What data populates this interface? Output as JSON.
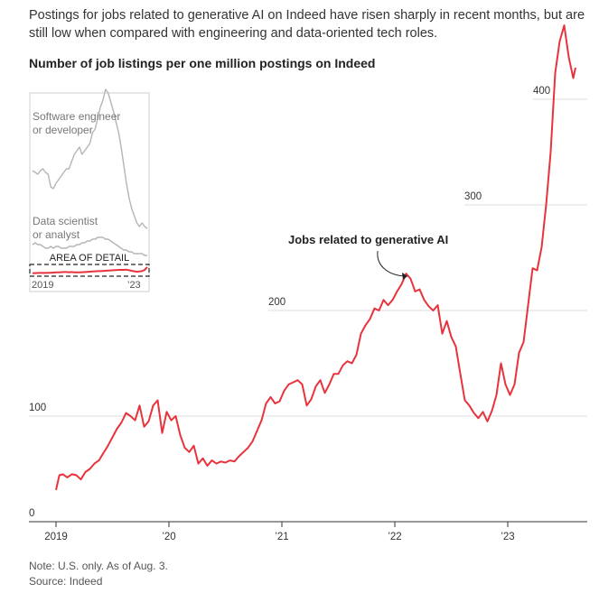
{
  "header": {
    "subtitle": "Postings for jobs related to generative AI on Indeed have risen sharply in recent months, but are still low when compared with engineering and data-oriented tech roles.",
    "title": "Number of job listings per one million postings on Indeed"
  },
  "footer": {
    "note": "Note: U.S. only. As of Aug. 3.",
    "source": "Source: Indeed"
  },
  "colors": {
    "series": "#e8333c",
    "grid": "#dcdcdc",
    "inset_line": "#b5b5b5",
    "text": "#222222"
  },
  "chart_data": [
    {
      "type": "line",
      "title": "Number of job listings per one million postings on Indeed",
      "xlabel": "",
      "ylabel": "",
      "ylim": [
        0,
        440
      ],
      "y_ticks": [
        0,
        100,
        200,
        300,
        400
      ],
      "y_tick_labels": [
        "0",
        "100",
        "200",
        "300",
        "400"
      ],
      "x_ticks": [
        2019.0,
        2020.0,
        2021.0,
        2022.0,
        2023.0
      ],
      "x_tick_labels": [
        "2019",
        "’20",
        "’21",
        "’22",
        "’23"
      ],
      "grid": true,
      "annotation": "Jobs related to generative AI",
      "series": [
        {
          "name": "Jobs related to generative AI",
          "x": [
            2019.0,
            2019.03,
            2019.06,
            2019.1,
            2019.14,
            2019.18,
            2019.22,
            2019.26,
            2019.3,
            2019.34,
            2019.38,
            2019.42,
            2019.46,
            2019.5,
            2019.54,
            2019.58,
            2019.62,
            2019.66,
            2019.7,
            2019.74,
            2019.78,
            2019.82,
            2019.86,
            2019.9,
            2019.94,
            2019.98,
            2020.02,
            2020.06,
            2020.1,
            2020.14,
            2020.18,
            2020.22,
            2020.26,
            2020.3,
            2020.34,
            2020.38,
            2020.42,
            2020.46,
            2020.5,
            2020.54,
            2020.58,
            2020.62,
            2020.66,
            2020.7,
            2020.74,
            2020.78,
            2020.82,
            2020.86,
            2020.9,
            2020.94,
            2020.98,
            2021.02,
            2021.06,
            2021.1,
            2021.14,
            2021.18,
            2021.22,
            2021.26,
            2021.3,
            2021.34,
            2021.38,
            2021.42,
            2021.46,
            2021.5,
            2021.54,
            2021.58,
            2021.62,
            2021.66,
            2021.7,
            2021.74,
            2021.78,
            2021.82,
            2021.86,
            2021.9,
            2021.94,
            2021.98,
            2022.02,
            2022.06,
            2022.1,
            2022.14,
            2022.18,
            2022.22,
            2022.26,
            2022.3,
            2022.34,
            2022.38,
            2022.42,
            2022.46,
            2022.5,
            2022.54,
            2022.58,
            2022.62,
            2022.66,
            2022.7,
            2022.74,
            2022.78,
            2022.82,
            2022.86,
            2022.9,
            2022.94,
            2022.98,
            2023.02,
            2023.06,
            2023.1,
            2023.14,
            2023.18,
            2023.22,
            2023.26,
            2023.3,
            2023.34,
            2023.38,
            2023.42,
            2023.46,
            2023.5,
            2023.54,
            2023.58,
            2023.6
          ],
          "values": [
            30,
            44,
            45,
            42,
            45,
            44,
            40,
            47,
            50,
            55,
            58,
            65,
            72,
            80,
            88,
            94,
            103,
            100,
            96,
            110,
            90,
            95,
            110,
            115,
            84,
            104,
            96,
            100,
            82,
            70,
            66,
            72,
            55,
            60,
            53,
            58,
            55,
            57,
            56,
            58,
            57,
            62,
            66,
            70,
            76,
            86,
            96,
            112,
            118,
            112,
            114,
            124,
            130,
            132,
            134,
            130,
            110,
            116,
            128,
            134,
            122,
            130,
            140,
            140,
            148,
            152,
            150,
            158,
            178,
            186,
            192,
            202,
            200,
            210,
            205,
            210,
            218,
            225,
            235,
            230,
            218,
            220,
            210,
            204,
            200,
            205,
            178,
            190,
            175,
            166,
            140,
            115,
            110,
            103,
            98,
            104,
            95,
            105,
            120,
            150,
            130,
            120,
            130,
            160,
            170,
            205,
            240,
            238,
            260,
            300,
            350,
            425,
            455,
            470,
            440,
            420,
            430
          ]
        }
      ]
    },
    {
      "type": "line",
      "title": "",
      "x_tick_labels": [
        "2019",
        "’23"
      ],
      "area_label": "AREA OF DETAIL",
      "series": [
        {
          "name": "Software engineer or developer",
          "values": [
            57,
            56,
            55,
            57,
            58,
            56,
            55,
            48,
            47,
            50,
            52,
            54,
            56,
            58,
            58,
            62,
            66,
            68,
            70,
            66,
            68,
            70,
            72,
            78,
            80,
            86,
            92,
            96,
            102,
            100,
            95,
            90,
            84,
            78,
            70,
            60,
            50,
            42,
            36,
            32,
            28,
            26,
            28,
            26,
            25
          ]
        },
        {
          "name": "Data scientist or analyst",
          "values": [
            16,
            17,
            16,
            16,
            15,
            14,
            14,
            15,
            14,
            15,
            15,
            14,
            14,
            14,
            15,
            15,
            15,
            16,
            16,
            17,
            17,
            18,
            18,
            19,
            19,
            20,
            20,
            20,
            19,
            19,
            18,
            17,
            16,
            15,
            14,
            13,
            13,
            12,
            12,
            11,
            11,
            11,
            11,
            10,
            10
          ]
        },
        {
          "name": "Jobs related to generative AI",
          "values": [
            0.2,
            0.2,
            0.3,
            0.3,
            0.3,
            0.3,
            0.4,
            0.4,
            0.5,
            0.6,
            0.6,
            0.7,
            0.8,
            0.8,
            0.7,
            0.8,
            0.6,
            0.6,
            0.6,
            0.7,
            0.8,
            0.9,
            1.0,
            1.1,
            1.2,
            1.3,
            1.3,
            1.4,
            1.5,
            1.6,
            1.7,
            1.8,
            1.9,
            2.0,
            2.0,
            2.0,
            2.1,
            1.8,
            1.5,
            1.2,
            1.0,
            1.1,
            1.3,
            2.0,
            3.5
          ]
        }
      ]
    }
  ]
}
